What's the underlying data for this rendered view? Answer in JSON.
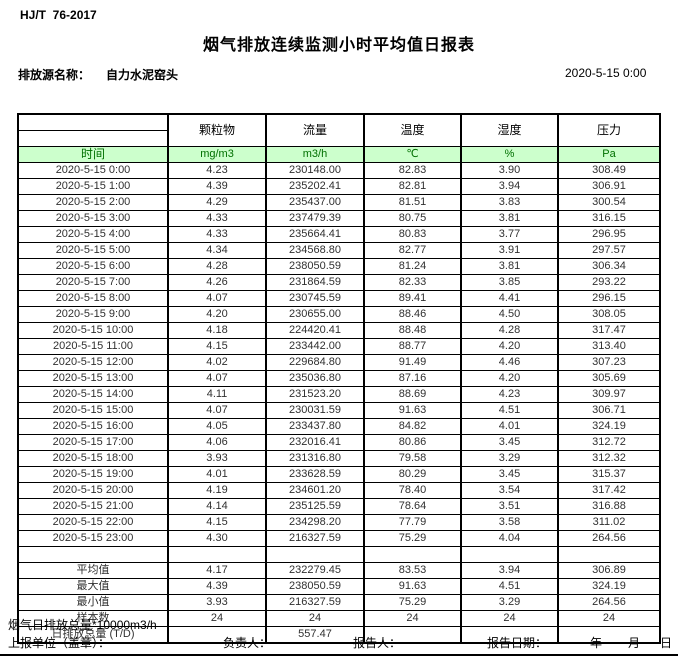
{
  "header": {
    "standard_code": "HJ/T  76-2017",
    "title": "烟气排放连续监测小时平均值日报表",
    "source_label": "排放源名称：",
    "source_name": "自力水泥窑头",
    "report_datetime": "2020-5-15 0:00"
  },
  "table": {
    "time_header": "时间",
    "columns": [
      "颗粒物",
      "流量",
      "温度",
      "湿度",
      "压力"
    ],
    "units": [
      "mg/m3",
      "m3/h",
      "℃",
      "%",
      "Pa"
    ],
    "rows": [
      [
        "2020-5-15 0:00",
        "4.23",
        "230148.00",
        "82.83",
        "3.90",
        "308.49"
      ],
      [
        "2020-5-15 1:00",
        "4.39",
        "235202.41",
        "82.81",
        "3.94",
        "306.91"
      ],
      [
        "2020-5-15 2:00",
        "4.29",
        "235437.00",
        "81.51",
        "3.83",
        "300.54"
      ],
      [
        "2020-5-15 3:00",
        "4.33",
        "237479.39",
        "80.75",
        "3.81",
        "316.15"
      ],
      [
        "2020-5-15 4:00",
        "4.33",
        "235664.41",
        "80.83",
        "3.77",
        "296.95"
      ],
      [
        "2020-5-15 5:00",
        "4.34",
        "234568.80",
        "82.77",
        "3.91",
        "297.57"
      ],
      [
        "2020-5-15 6:00",
        "4.28",
        "238050.59",
        "81.24",
        "3.81",
        "306.34"
      ],
      [
        "2020-5-15 7:00",
        "4.26",
        "231864.59",
        "82.33",
        "3.85",
        "293.22"
      ],
      [
        "2020-5-15 8:00",
        "4.07",
        "230745.59",
        "89.41",
        "4.41",
        "296.15"
      ],
      [
        "2020-5-15 9:00",
        "4.20",
        "230655.00",
        "88.46",
        "4.50",
        "308.05"
      ],
      [
        "2020-5-15 10:00",
        "4.18",
        "224420.41",
        "88.48",
        "4.28",
        "317.47"
      ],
      [
        "2020-5-15 11:00",
        "4.15",
        "233442.00",
        "88.77",
        "4.20",
        "313.40"
      ],
      [
        "2020-5-15 12:00",
        "4.02",
        "229684.80",
        "91.49",
        "4.46",
        "307.23"
      ],
      [
        "2020-5-15 13:00",
        "4.07",
        "235036.80",
        "87.16",
        "4.20",
        "305.69"
      ],
      [
        "2020-5-15 14:00",
        "4.11",
        "231523.20",
        "88.69",
        "4.23",
        "309.97"
      ],
      [
        "2020-5-15 15:00",
        "4.07",
        "230031.59",
        "91.63",
        "4.51",
        "306.71"
      ],
      [
        "2020-5-15 16:00",
        "4.05",
        "233437.80",
        "84.82",
        "4.01",
        "324.19"
      ],
      [
        "2020-5-15 17:00",
        "4.06",
        "232016.41",
        "80.86",
        "3.45",
        "312.72"
      ],
      [
        "2020-5-15 18:00",
        "3.93",
        "231316.80",
        "79.58",
        "3.29",
        "312.32"
      ],
      [
        "2020-5-15 19:00",
        "4.01",
        "233628.59",
        "80.29",
        "3.45",
        "315.37"
      ],
      [
        "2020-5-15 20:00",
        "4.19",
        "234601.20",
        "78.40",
        "3.54",
        "317.42"
      ],
      [
        "2020-5-15 21:00",
        "4.14",
        "235125.59",
        "78.64",
        "3.51",
        "316.88"
      ],
      [
        "2020-5-15 22:00",
        "4.15",
        "234298.20",
        "77.79",
        "3.58",
        "311.02"
      ],
      [
        "2020-5-15 23:00",
        "4.30",
        "216327.59",
        "75.29",
        "4.04",
        "264.56"
      ]
    ],
    "summary": [
      {
        "label": "平均值",
        "values": [
          "4.17",
          "232279.45",
          "83.53",
          "3.94",
          "306.89"
        ]
      },
      {
        "label": "最大值",
        "values": [
          "4.39",
          "238050.59",
          "91.63",
          "4.51",
          "324.19"
        ]
      },
      {
        "label": "最小值",
        "values": [
          "3.93",
          "216327.59",
          "75.29",
          "3.29",
          "264.56"
        ]
      },
      {
        "label": "样本数",
        "values": [
          "24",
          "24",
          "24",
          "24",
          "24"
        ]
      },
      {
        "label": "日排放总量 (T/D)",
        "values": [
          "",
          "557.47",
          "",
          "",
          ""
        ]
      }
    ]
  },
  "footer": {
    "note": "烟气日排放总量*10000m3/h",
    "report_unit_label": "上报单位（盖章）：",
    "responsible_label": "负责人：",
    "reporter_label": "报告人：",
    "report_date_label": "报告日期：",
    "year_label": "年",
    "month_label": "月",
    "day_label": "日"
  },
  "colors": {
    "unit_row_background": "#ccffcc",
    "unit_row_text": "#007000",
    "table_border": "#000000"
  }
}
